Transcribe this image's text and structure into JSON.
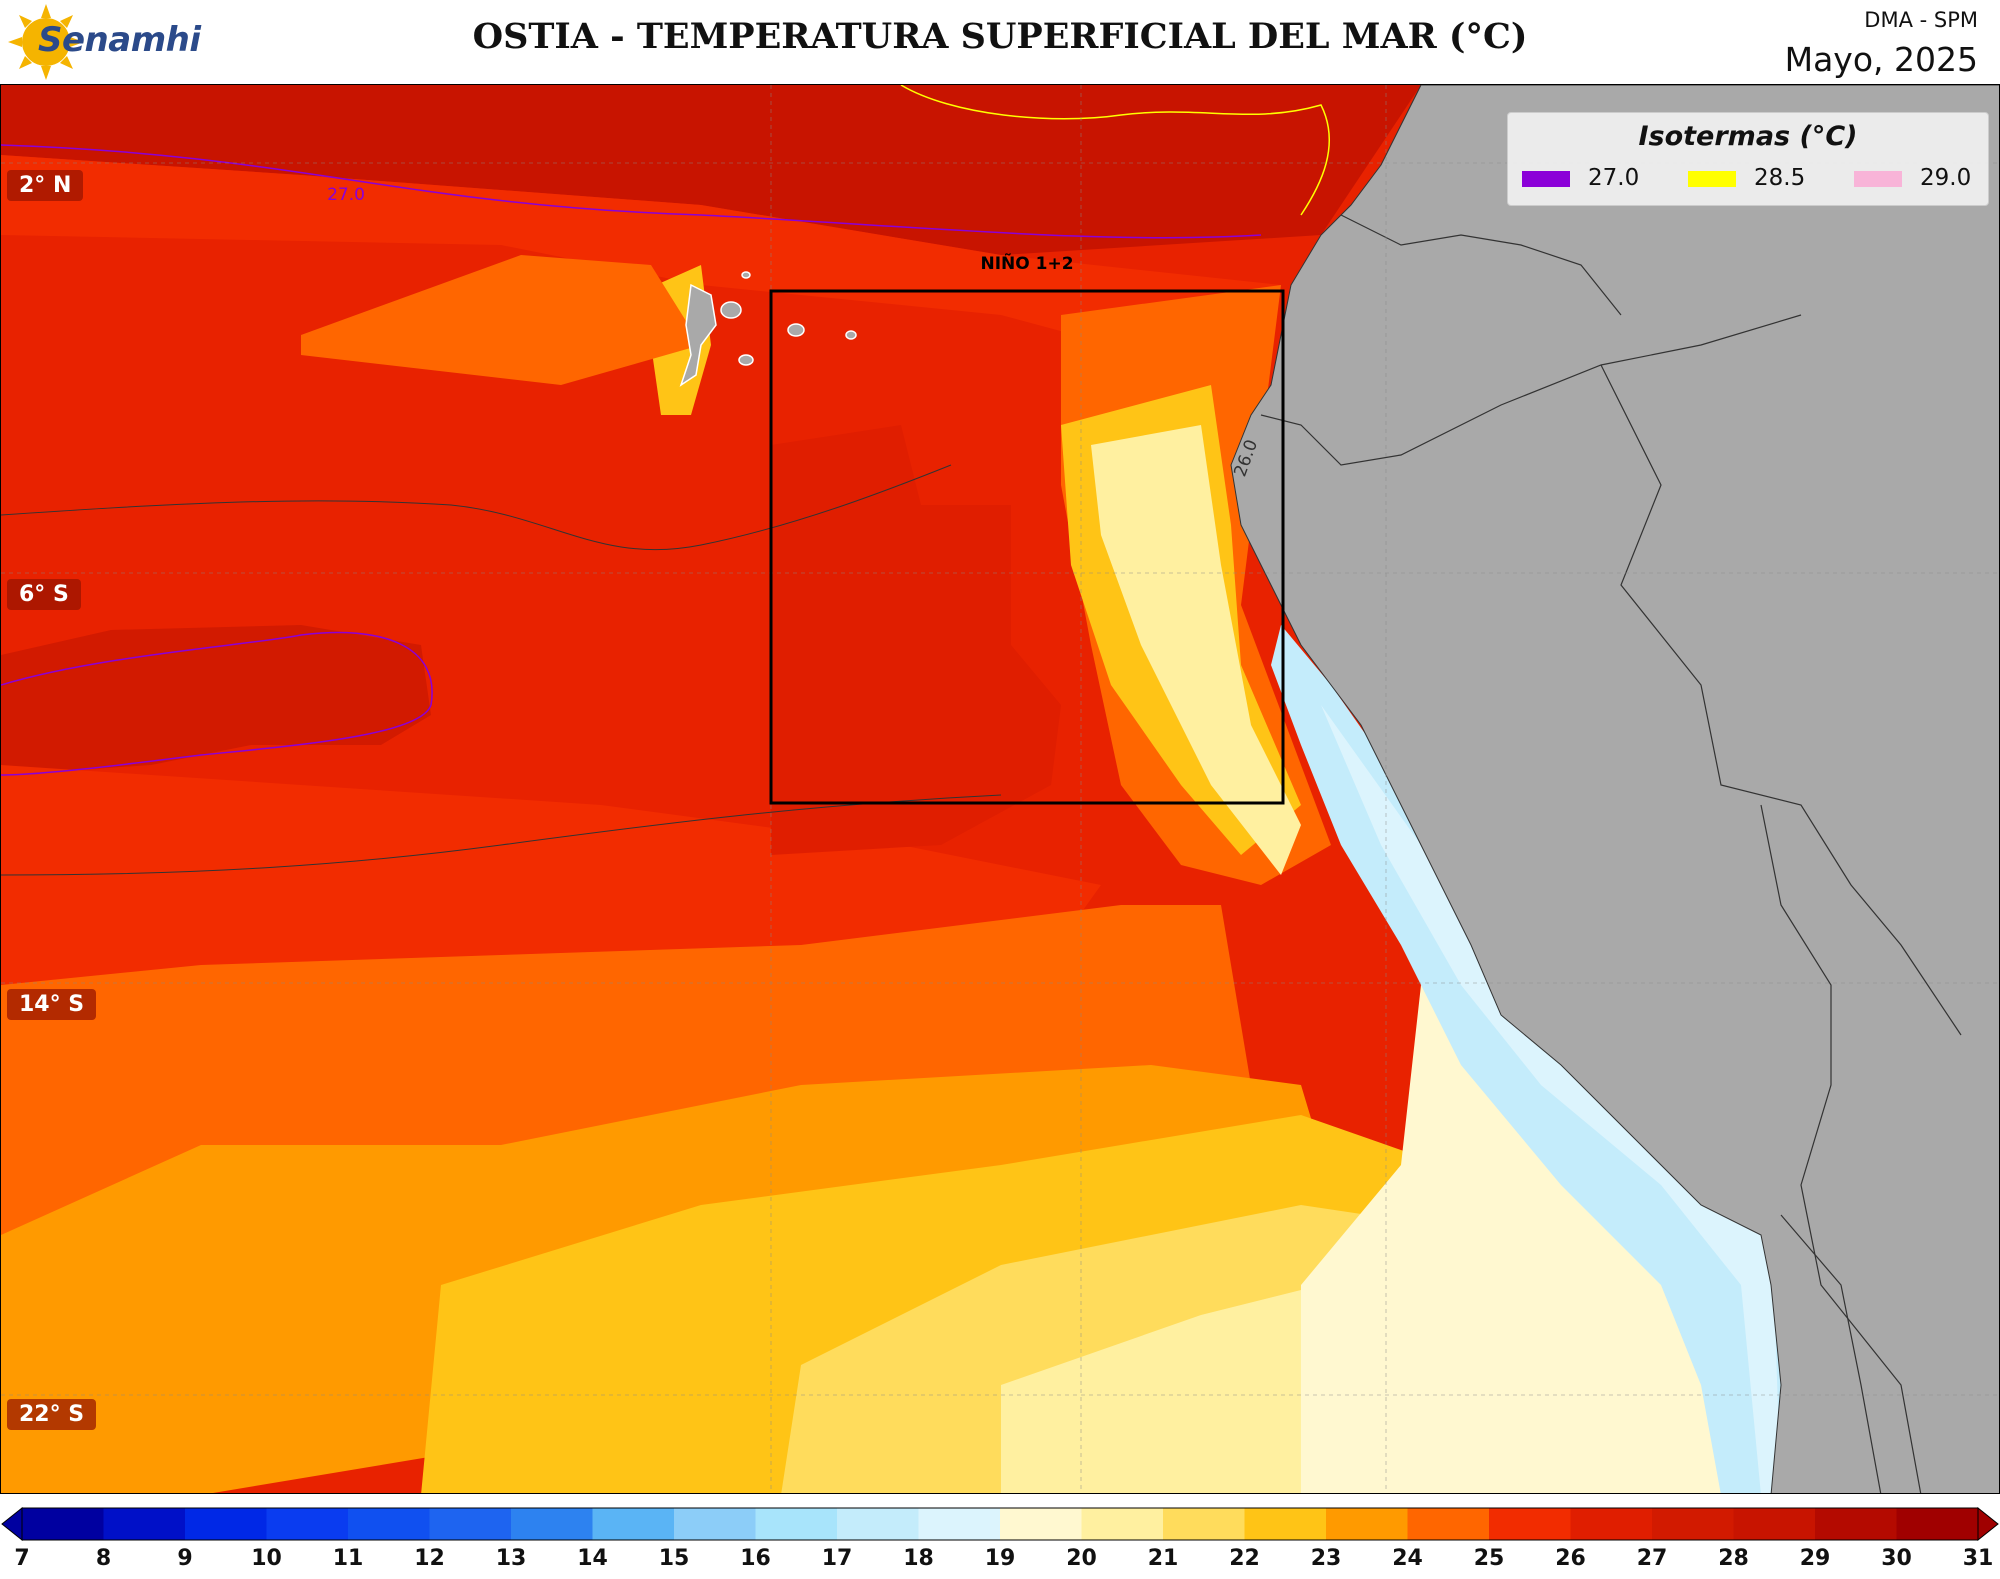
{
  "header": {
    "logo_text": "Senamhi",
    "title": "OSTIA - TEMPERATURA SUPERFICIAL DEL MAR (°C)",
    "org": "DMA - SPM",
    "date": "Mayo, 2025"
  },
  "map": {
    "lat_labels": [
      "2° N",
      "6° S",
      "14° S",
      "22° S"
    ],
    "region_label": "NIÑO 1+2",
    "contour_labels": [
      "27.0",
      "26.0"
    ],
    "land_color": "#a9a9a9"
  },
  "legend": {
    "title": "Isotermas (°C)",
    "items": [
      {
        "label": "27.0",
        "color": "#8b00d8"
      },
      {
        "label": "28.5",
        "color": "#ffff00"
      },
      {
        "label": "29.0",
        "color": "#f8b4d8"
      }
    ]
  },
  "colorbar": {
    "ticks": [
      "7",
      "8",
      "9",
      "10",
      "11",
      "12",
      "13",
      "14",
      "15",
      "16",
      "17",
      "18",
      "19",
      "20",
      "21",
      "22",
      "23",
      "24",
      "25",
      "26",
      "27",
      "28",
      "29",
      "30",
      "31"
    ],
    "colors": [
      "#0000a0",
      "#0010c8",
      "#0028e6",
      "#0a3cf0",
      "#1050f0",
      "#1e64f0",
      "#2d82f0",
      "#5ab4f5",
      "#8ccdf8",
      "#a8e4fb",
      "#c4ecfb",
      "#dcf4fd",
      "#fff8d0",
      "#fff0a0",
      "#ffdc5c",
      "#ffc416",
      "#ff9a00",
      "#ff6600",
      "#f22c00",
      "#e01e00",
      "#d21a00",
      "#c81400",
      "#b40a00",
      "#a00000"
    ]
  }
}
